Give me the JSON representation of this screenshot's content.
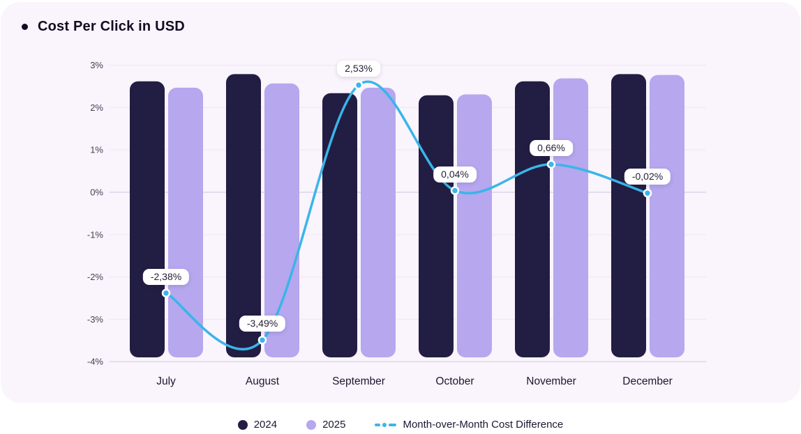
{
  "title": "Cost Per Click in USD",
  "colors": {
    "card_bg": "#faf4fc",
    "bar_2024": "#221d42",
    "bar_2025": "#b6a7ee",
    "line": "#3ab5e9",
    "grid": "#f0e9f7",
    "grid_strong": "#dcd5e8",
    "axis_tick_text": "#47405a",
    "month_text": "#1d1631",
    "point_marker_ring": "#ffffff",
    "label_bg": "#ffffff",
    "label_text": "#241d35"
  },
  "chart_data": {
    "type": "bar",
    "title": "Cost Per Click in USD",
    "categories": [
      "July",
      "August",
      "September",
      "October",
      "November",
      "December"
    ],
    "series": [
      {
        "name": "2024",
        "type": "bar",
        "values": [
          2.62,
          2.79,
          2.34,
          2.29,
          2.62,
          2.79
        ]
      },
      {
        "name": "2025",
        "type": "bar",
        "values": [
          2.47,
          2.57,
          2.47,
          2.31,
          2.69,
          2.77
        ]
      },
      {
        "name": "Month-over-Month Cost Difference",
        "type": "line",
        "values": [
          -2.38,
          -3.49,
          2.53,
          0.04,
          0.66,
          -0.02
        ],
        "point_labels": [
          "-2,38%",
          "-3,49%",
          "2,53%",
          "0,04%",
          "0,66%",
          "-0,02%"
        ]
      }
    ],
    "xlabel": "",
    "ylabel": "",
    "ytick_labels": [
      "3%",
      "2%",
      "1%",
      "0%",
      "-1%",
      "-2%",
      "-3%",
      "-4%"
    ],
    "ytick_values": [
      3,
      2,
      1,
      0,
      -1,
      -2,
      -3,
      -4
    ],
    "ylim": [
      -4,
      3
    ],
    "grid": true,
    "legend_position": "bottom"
  },
  "legend": {
    "items": [
      {
        "label": "2024",
        "swatch": "circle",
        "color": "#221d42"
      },
      {
        "label": "2025",
        "swatch": "circle",
        "color": "#b6a7ee"
      },
      {
        "label": "Month-over-Month Cost Difference",
        "swatch": "dash-dot-line",
        "color": "#3ab5e9"
      }
    ]
  }
}
